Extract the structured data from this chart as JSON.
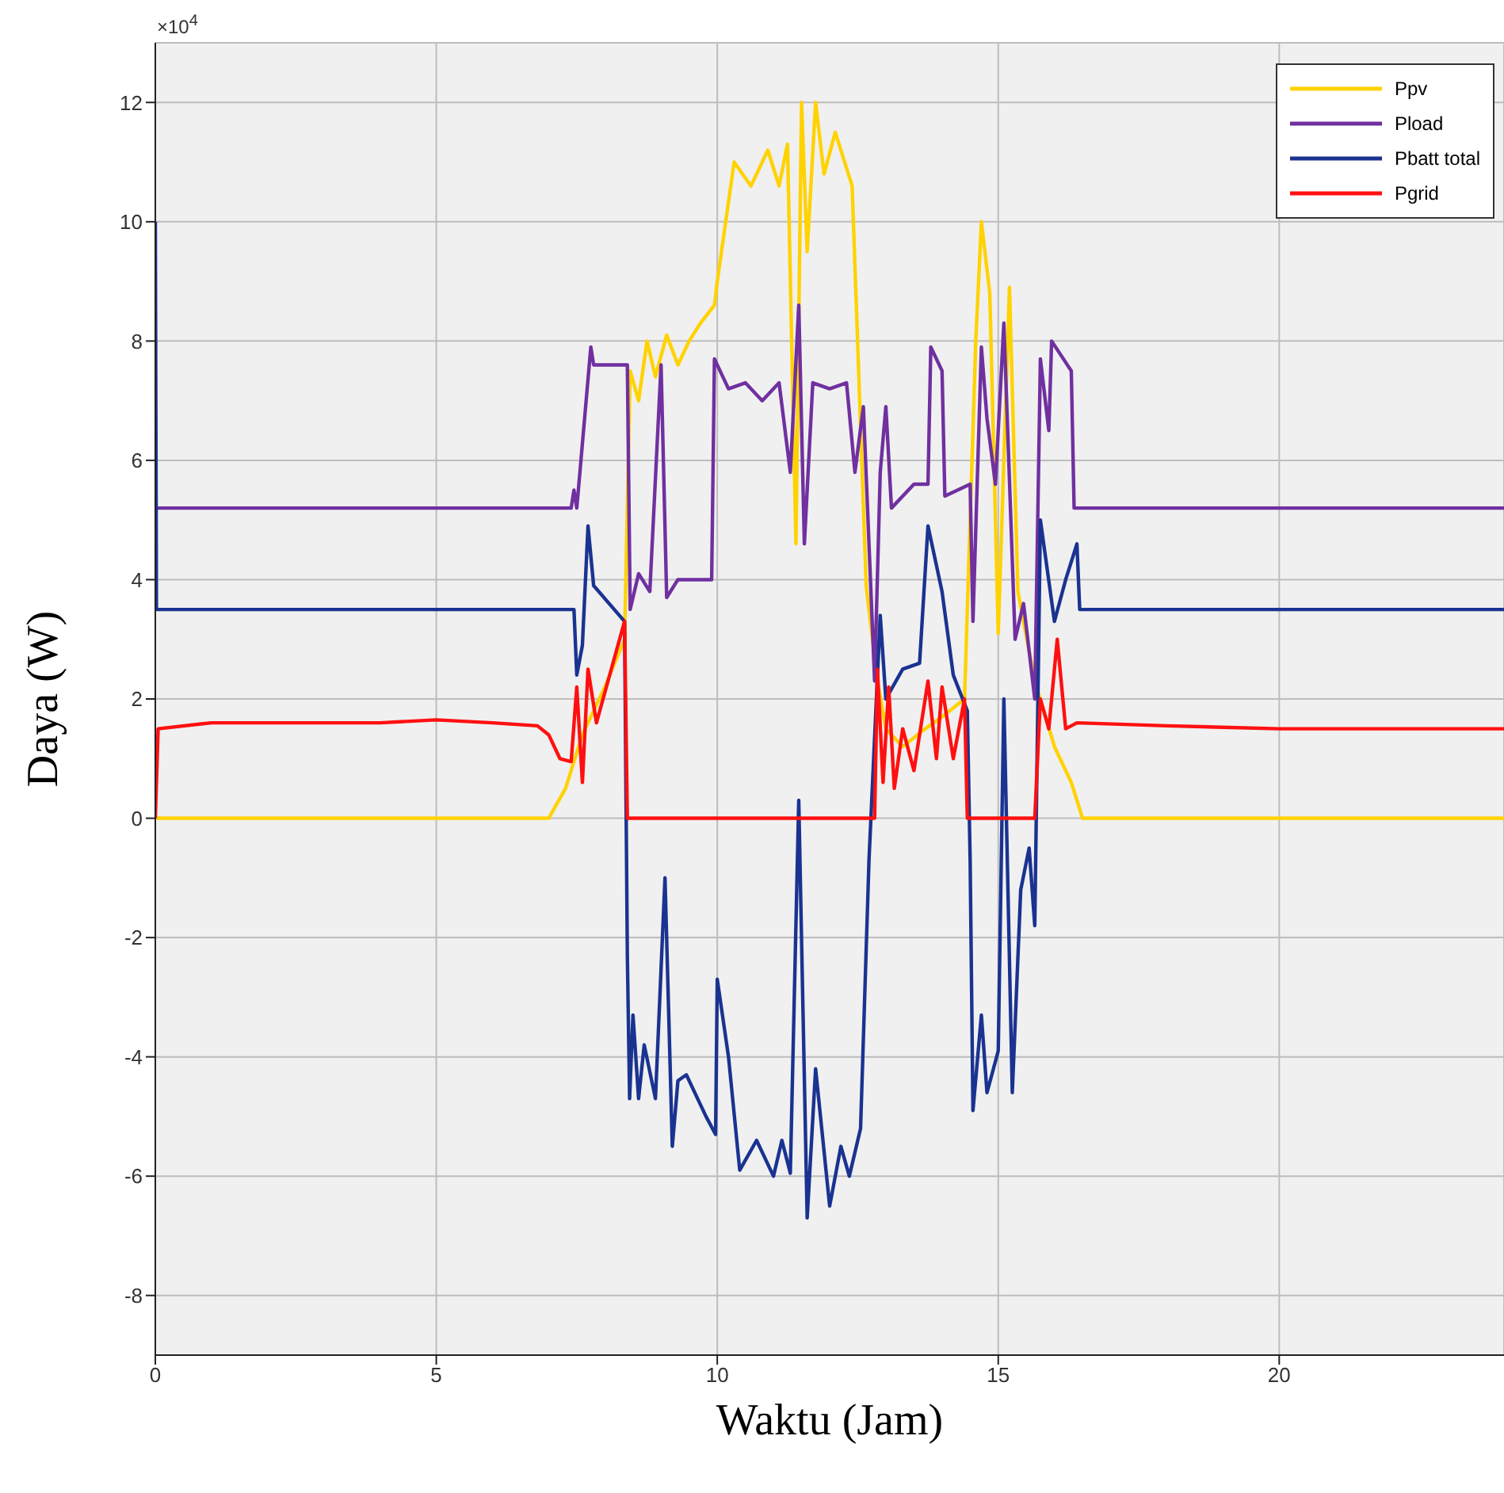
{
  "chart_data": {
    "type": "line",
    "xlabel": "Waktu (Jam)",
    "ylabel": "Daya (W)",
    "annotations": [
      "×10$^{4}$"
    ],
    "xlim": [
      0,
      24
    ],
    "xticks": [
      0,
      5,
      10,
      15,
      20
    ],
    "ylim": [
      -9,
      13
    ],
    "yticks": [
      -8,
      -6,
      -4,
      -2,
      0,
      2,
      4,
      6,
      8,
      10,
      12
    ],
    "grid": true,
    "legend": "top right",
    "series": [
      {
        "name": "Ppv",
        "color": "#ffd200",
        "x": [
          0,
          7.0,
          7.3,
          7.6,
          8.0,
          8.35,
          8.45,
          8.6,
          8.75,
          8.9,
          9.1,
          9.3,
          9.5,
          9.7,
          9.95,
          10.0,
          10.3,
          10.6,
          10.9,
          11.1,
          11.25,
          11.4,
          11.5,
          11.6,
          11.75,
          11.9,
          12.1,
          12.4,
          12.65,
          12.85,
          13.0,
          13.3,
          13.7,
          14.0,
          14.4,
          14.6,
          14.7,
          14.85,
          15.0,
          15.2,
          15.35,
          15.65,
          16.0,
          16.3,
          16.5,
          24
        ],
        "values": [
          0,
          0,
          0.5,
          1.4,
          2.2,
          3.0,
          7.5,
          7.0,
          8.0,
          7.4,
          8.1,
          7.6,
          8.0,
          8.3,
          8.6,
          9.0,
          11.0,
          10.6,
          11.2,
          10.6,
          11.3,
          4.6,
          12.0,
          9.5,
          12.0,
          10.8,
          11.5,
          10.6,
          3.9,
          2.3,
          1.5,
          1.2,
          1.5,
          1.7,
          2.0,
          8.0,
          10.0,
          8.8,
          3.1,
          8.9,
          3.8,
          2.3,
          1.2,
          0.6,
          0,
          0
        ]
      },
      {
        "name": "Pload",
        "color": "#7030a0",
        "x": [
          0,
          7.4,
          7.45,
          7.5,
          7.75,
          7.8,
          8.4,
          8.45,
          8.6,
          8.8,
          9.0,
          9.1,
          9.3,
          9.9,
          9.95,
          10.2,
          10.5,
          10.8,
          11.1,
          11.3,
          11.45,
          11.55,
          11.7,
          12.0,
          12.3,
          12.45,
          12.6,
          12.8,
          12.9,
          13.0,
          13.1,
          13.5,
          13.75,
          13.8,
          14.0,
          14.05,
          14.5,
          14.55,
          14.7,
          14.8,
          14.95,
          15.1,
          15.3,
          15.45,
          15.65,
          15.75,
          15.9,
          15.95,
          16.3,
          16.35,
          24
        ],
        "values": [
          5.2,
          5.2,
          5.5,
          5.2,
          7.9,
          7.6,
          7.6,
          3.5,
          4.1,
          3.8,
          7.6,
          3.7,
          4.0,
          4.0,
          7.7,
          7.2,
          7.3,
          7.0,
          7.3,
          5.8,
          8.6,
          4.6,
          7.3,
          7.2,
          7.3,
          5.8,
          6.9,
          2.3,
          5.8,
          6.9,
          5.2,
          5.6,
          5.6,
          7.9,
          7.5,
          5.4,
          5.6,
          3.3,
          7.9,
          6.7,
          5.6,
          8.3,
          3.0,
          3.6,
          2.0,
          7.7,
          6.5,
          8.0,
          7.5,
          5.2,
          5.2
        ]
      },
      {
        "name": "Pbatt total",
        "color": "#1a3391",
        "x": [
          0,
          0.02,
          7.45,
          7.5,
          7.6,
          7.7,
          7.8,
          8.35,
          8.4,
          8.44,
          8.5,
          8.6,
          8.7,
          8.9,
          9.07,
          9.2,
          9.3,
          9.45,
          9.8,
          9.97,
          10.0,
          10.2,
          10.4,
          10.7,
          11.0,
          11.15,
          11.3,
          11.45,
          11.6,
          11.75,
          12.0,
          12.2,
          12.35,
          12.55,
          12.7,
          12.9,
          13.0,
          13.3,
          13.6,
          13.75,
          14.0,
          14.2,
          14.45,
          14.5,
          14.55,
          14.7,
          14.8,
          15.0,
          15.1,
          15.25,
          15.4,
          15.55,
          15.65,
          15.75,
          16.0,
          16.2,
          16.4,
          16.45,
          24
        ],
        "values": [
          10,
          3.5,
          3.5,
          2.4,
          2.9,
          4.9,
          3.9,
          3.3,
          -2.3,
          -4.7,
          -3.3,
          -4.7,
          -3.8,
          -4.7,
          -1.0,
          -5.5,
          -4.4,
          -4.3,
          -5.0,
          -5.3,
          -2.7,
          -4.0,
          -5.9,
          -5.4,
          -6.0,
          -5.4,
          -5.95,
          0.3,
          -6.7,
          -4.2,
          -6.5,
          -5.5,
          -6.0,
          -5.2,
          -0.7,
          3.4,
          2.0,
          2.5,
          2.6,
          4.9,
          3.8,
          2.4,
          1.8,
          -0.7,
          -4.9,
          -3.3,
          -4.6,
          -3.9,
          2.0,
          -4.6,
          -1.2,
          -0.5,
          -1.8,
          5.0,
          3.3,
          4.0,
          4.6,
          3.5,
          3.5
        ]
      },
      {
        "name": "Pgrid",
        "color": "#ff1010",
        "x": [
          0,
          0.05,
          1,
          2,
          3,
          4,
          5,
          6,
          6.8,
          7.0,
          7.2,
          7.4,
          7.5,
          7.6,
          7.7,
          7.85,
          8.35,
          8.4,
          12.8,
          12.85,
          12.95,
          13.05,
          13.15,
          13.3,
          13.5,
          13.75,
          13.9,
          14.0,
          14.2,
          14.4,
          14.45,
          15.65,
          15.75,
          15.9,
          16.05,
          16.2,
          16.4,
          18,
          20,
          22,
          24
        ],
        "values": [
          0,
          1.5,
          1.6,
          1.6,
          1.6,
          1.6,
          1.65,
          1.6,
          1.55,
          1.4,
          1.0,
          0.95,
          2.2,
          0.6,
          2.5,
          1.6,
          3.3,
          0,
          0,
          2.5,
          0.6,
          2.2,
          0.5,
          1.5,
          0.8,
          2.3,
          1.0,
          2.2,
          1.0,
          2.0,
          0,
          0,
          2.0,
          1.5,
          3.0,
          1.5,
          1.6,
          1.55,
          1.5,
          1.5,
          1.5
        ]
      }
    ]
  }
}
